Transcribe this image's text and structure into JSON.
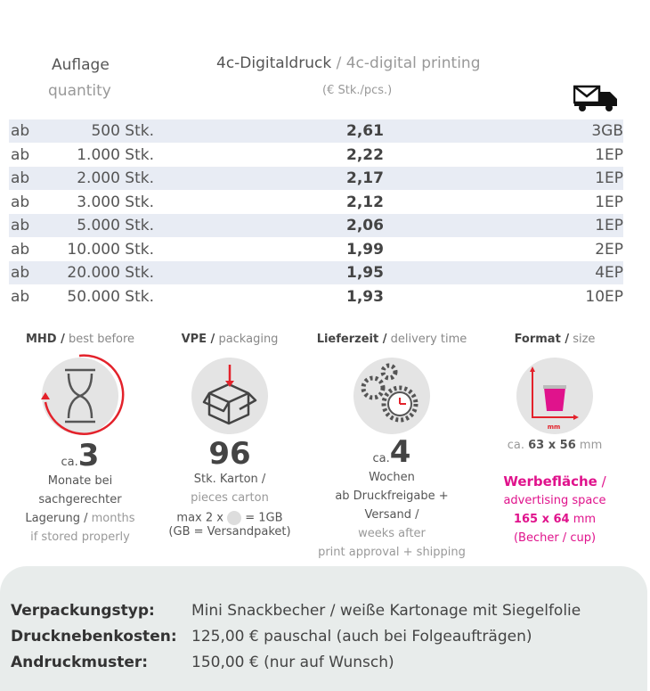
{
  "header": {
    "qty_de": "Auflage",
    "qty_en": "quantity",
    "print_de": "4c-Digitaldruck",
    "print_sep": " / ",
    "print_en": "4c-digital printing",
    "unit": "(€ Stk./pcs.)"
  },
  "prefix": "ab",
  "rows": [
    {
      "qty": "500 Stk.",
      "price": "2,61",
      "ship": "3GB"
    },
    {
      "qty": "1.000 Stk.",
      "price": "2,22",
      "ship": "1EP"
    },
    {
      "qty": "2.000 Stk.",
      "price": "2,17",
      "ship": "1EP"
    },
    {
      "qty": "3.000 Stk.",
      "price": "2,12",
      "ship": "1EP"
    },
    {
      "qty": "5.000 Stk.",
      "price": "2,06",
      "ship": "1EP"
    },
    {
      "qty": "10.000 Stk.",
      "price": "1,99",
      "ship": "2EP"
    },
    {
      "qty": "20.000 Stk.",
      "price": "1,95",
      "ship": "4EP"
    },
    {
      "qty": "50.000 Stk.",
      "price": "1,93",
      "ship": "10EP"
    }
  ],
  "info": {
    "mhd": {
      "title": "MHD /",
      "sub": " best before",
      "ca": "ca.",
      "num": "3",
      "l1": "Monate bei",
      "l2": "sachgerechter",
      "l3": "Lagerung /",
      "l3b": " months",
      "l4": "if stored properly"
    },
    "vpe": {
      "title": "VPE /",
      "sub": " packaging",
      "num": "96",
      "l1": "Stk. Karton /",
      "l2": "pieces carton",
      "l3a": "max 2 x",
      "l3b": "= 1GB",
      "l4": "(GB = Versandpaket)"
    },
    "delivery": {
      "title": "Lieferzeit /",
      "sub": " delivery time",
      "ca": "ca.",
      "num": "4",
      "l1": "Wochen",
      "l2": "ab Druckfreigabe + Versand /",
      "l3": "weeks after",
      "l4": "print approval + shipping"
    },
    "format": {
      "title": "Format /",
      "sub": " size",
      "axis": "mm",
      "size_ca": "ca.",
      "size": "63 x 56",
      "size_unit": "mm",
      "adv_de": "Werbefläche",
      "adv_sep": " /",
      "adv_en": "advertising space",
      "adv_size": "165 x 64",
      "adv_unit": "mm",
      "adv_note": "(Becher / cup)"
    }
  },
  "details": [
    {
      "label": "Verpackungstyp:",
      "value": "Mini Snackbecher / weiße Kartonage mit Siegelfolie"
    },
    {
      "label": "Drucknebenkosten:",
      "value": "125,00 € pauschal (auch bei Folgeaufträgen)"
    },
    {
      "label": "Andruckmuster:",
      "value": "150,00 € (nur auf Wunsch)"
    }
  ],
  "colors": {
    "accent": "#e0138c",
    "red": "#e3222b",
    "rowAlt": "#e8ecf4"
  }
}
